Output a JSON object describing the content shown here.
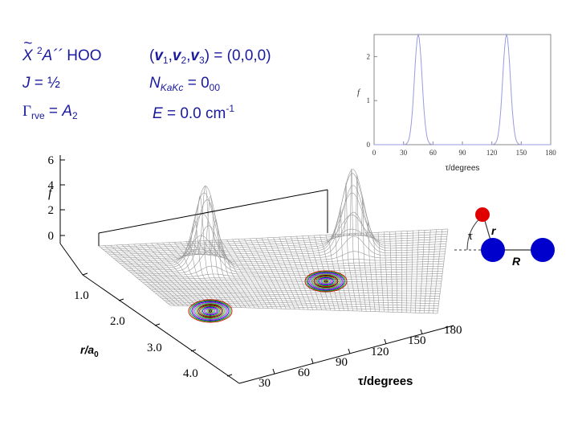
{
  "labels": {
    "state_symbol": "X",
    "state_tilde": "~",
    "state_mult": "2",
    "state_sym": "A´´",
    "molecule": "HOO",
    "vib_lhs_open": "(",
    "vib_v": "v",
    "vib_sub1": "1",
    "vib_sub2": "2",
    "vib_sub3": "3",
    "vib_comma": ",",
    "vib_close": ") = (0,0,0)",
    "j_label": "J",
    "j_value": " = ½",
    "n_label": "N",
    "n_sub": "KaKc",
    "n_value": " = 0",
    "n_value_sub": "00",
    "gamma_symbol": "Γ",
    "gamma_sub": "rve",
    "gamma_eq": " = ",
    "gamma_value": "A",
    "gamma_value_sub": "2",
    "e_label": "E",
    "e_value": " = 0.0 cm",
    "e_exp": "-1"
  },
  "inset_chart": {
    "ylabel": "f",
    "xlabel": "τ/degrees",
    "x_ticks": [
      "0",
      "30",
      "60",
      "90",
      "120",
      "150",
      "180"
    ],
    "y_ticks": [
      "0",
      "1",
      "2"
    ],
    "xlim": [
      0,
      180
    ],
    "ylim": [
      0,
      2.5
    ],
    "line_color": "#9a9ae6"
  },
  "surface_plot": {
    "f_label": "f",
    "f_ticks": [
      "6",
      "4",
      "2",
      "0"
    ],
    "r_label": "r/a",
    "r_label_sub": "0",
    "r_ticks": [
      "1.0",
      "2.0",
      "3.0",
      "4.0"
    ],
    "tau_label": "τ/degrees",
    "tau_ticks": [
      "30",
      "60",
      "90",
      "120",
      "150",
      "180"
    ]
  },
  "molecule_diagram": {
    "tau_label": "τ",
    "r_label": "r",
    "R_label": "R",
    "h_color": "#e00000",
    "o_color": "#0000cc"
  },
  "chart_data": {
    "type": "line",
    "title": "",
    "xlabel": "τ/degrees",
    "ylabel": "f",
    "xlim": [
      0,
      180
    ],
    "ylim": [
      0,
      2.5
    ],
    "series": [
      {
        "x": [
          0,
          30,
          35,
          40,
          43,
          45,
          47,
          50,
          55,
          60,
          70,
          90,
          110,
          120,
          125,
          130,
          133,
          135,
          137,
          140,
          145,
          150,
          160,
          180
        ],
        "y": [
          0,
          0,
          0.15,
          1.1,
          2.2,
          2.5,
          2.2,
          1.1,
          0.15,
          0,
          0,
          0,
          0,
          0,
          0.15,
          1.1,
          2.2,
          2.5,
          2.2,
          1.1,
          0.15,
          0,
          0,
          0
        ]
      }
    ]
  }
}
